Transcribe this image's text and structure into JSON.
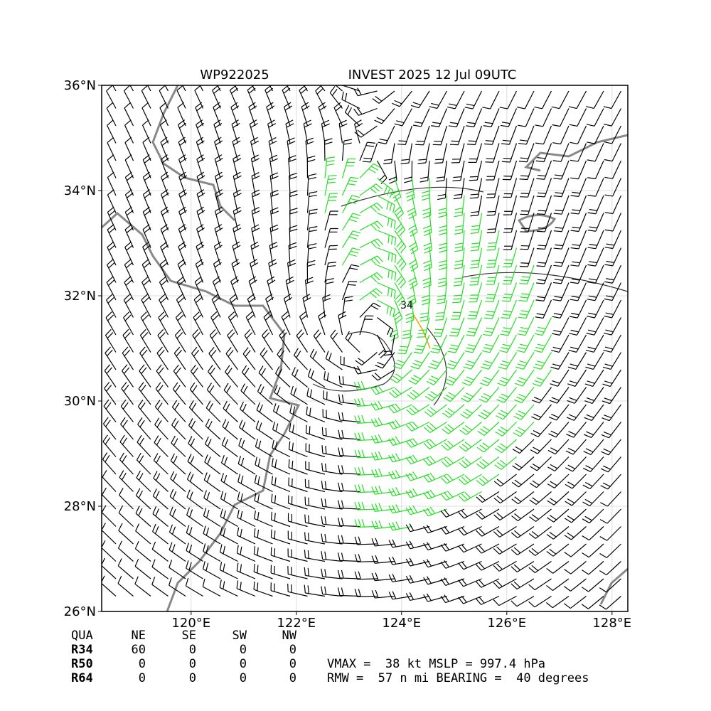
{
  "map": {
    "title_left": "WP922025",
    "title_right": "INVEST 2025 12 Jul 09UTC",
    "extent": {
      "lon": [
        118.3,
        128.3
      ],
      "lat": [
        26,
        36
      ]
    },
    "lat_ticks": [
      {
        "value": 26,
        "label": "26°N"
      },
      {
        "value": 28,
        "label": "28°N"
      },
      {
        "value": 30,
        "label": "30°N"
      },
      {
        "value": 32,
        "label": "32°N"
      },
      {
        "value": 34,
        "label": "34°N"
      },
      {
        "value": 36,
        "label": "36°N"
      }
    ],
    "lon_ticks": [
      {
        "value": 120,
        "label": "120°E"
      },
      {
        "value": 122,
        "label": "122°E"
      },
      {
        "value": 124,
        "label": "124°E"
      },
      {
        "value": 126,
        "label": "126°E"
      },
      {
        "value": 128,
        "label": "128°E"
      }
    ],
    "contour_label": "34"
  },
  "table": {
    "header": [
      "QUA",
      "NE",
      "SE",
      "SW",
      "NW"
    ],
    "rows": [
      [
        "R34",
        "60",
        "0",
        "0",
        "0"
      ],
      [
        "R50",
        "0",
        "0",
        "0",
        "0"
      ],
      [
        "R64",
        "0",
        "0",
        "0",
        "0"
      ]
    ]
  },
  "info": [
    "VMAX =  38 kt MSLP = 997.4 hPa",
    "RMW =  57 n mi BEARING =  40 degrees"
  ]
}
